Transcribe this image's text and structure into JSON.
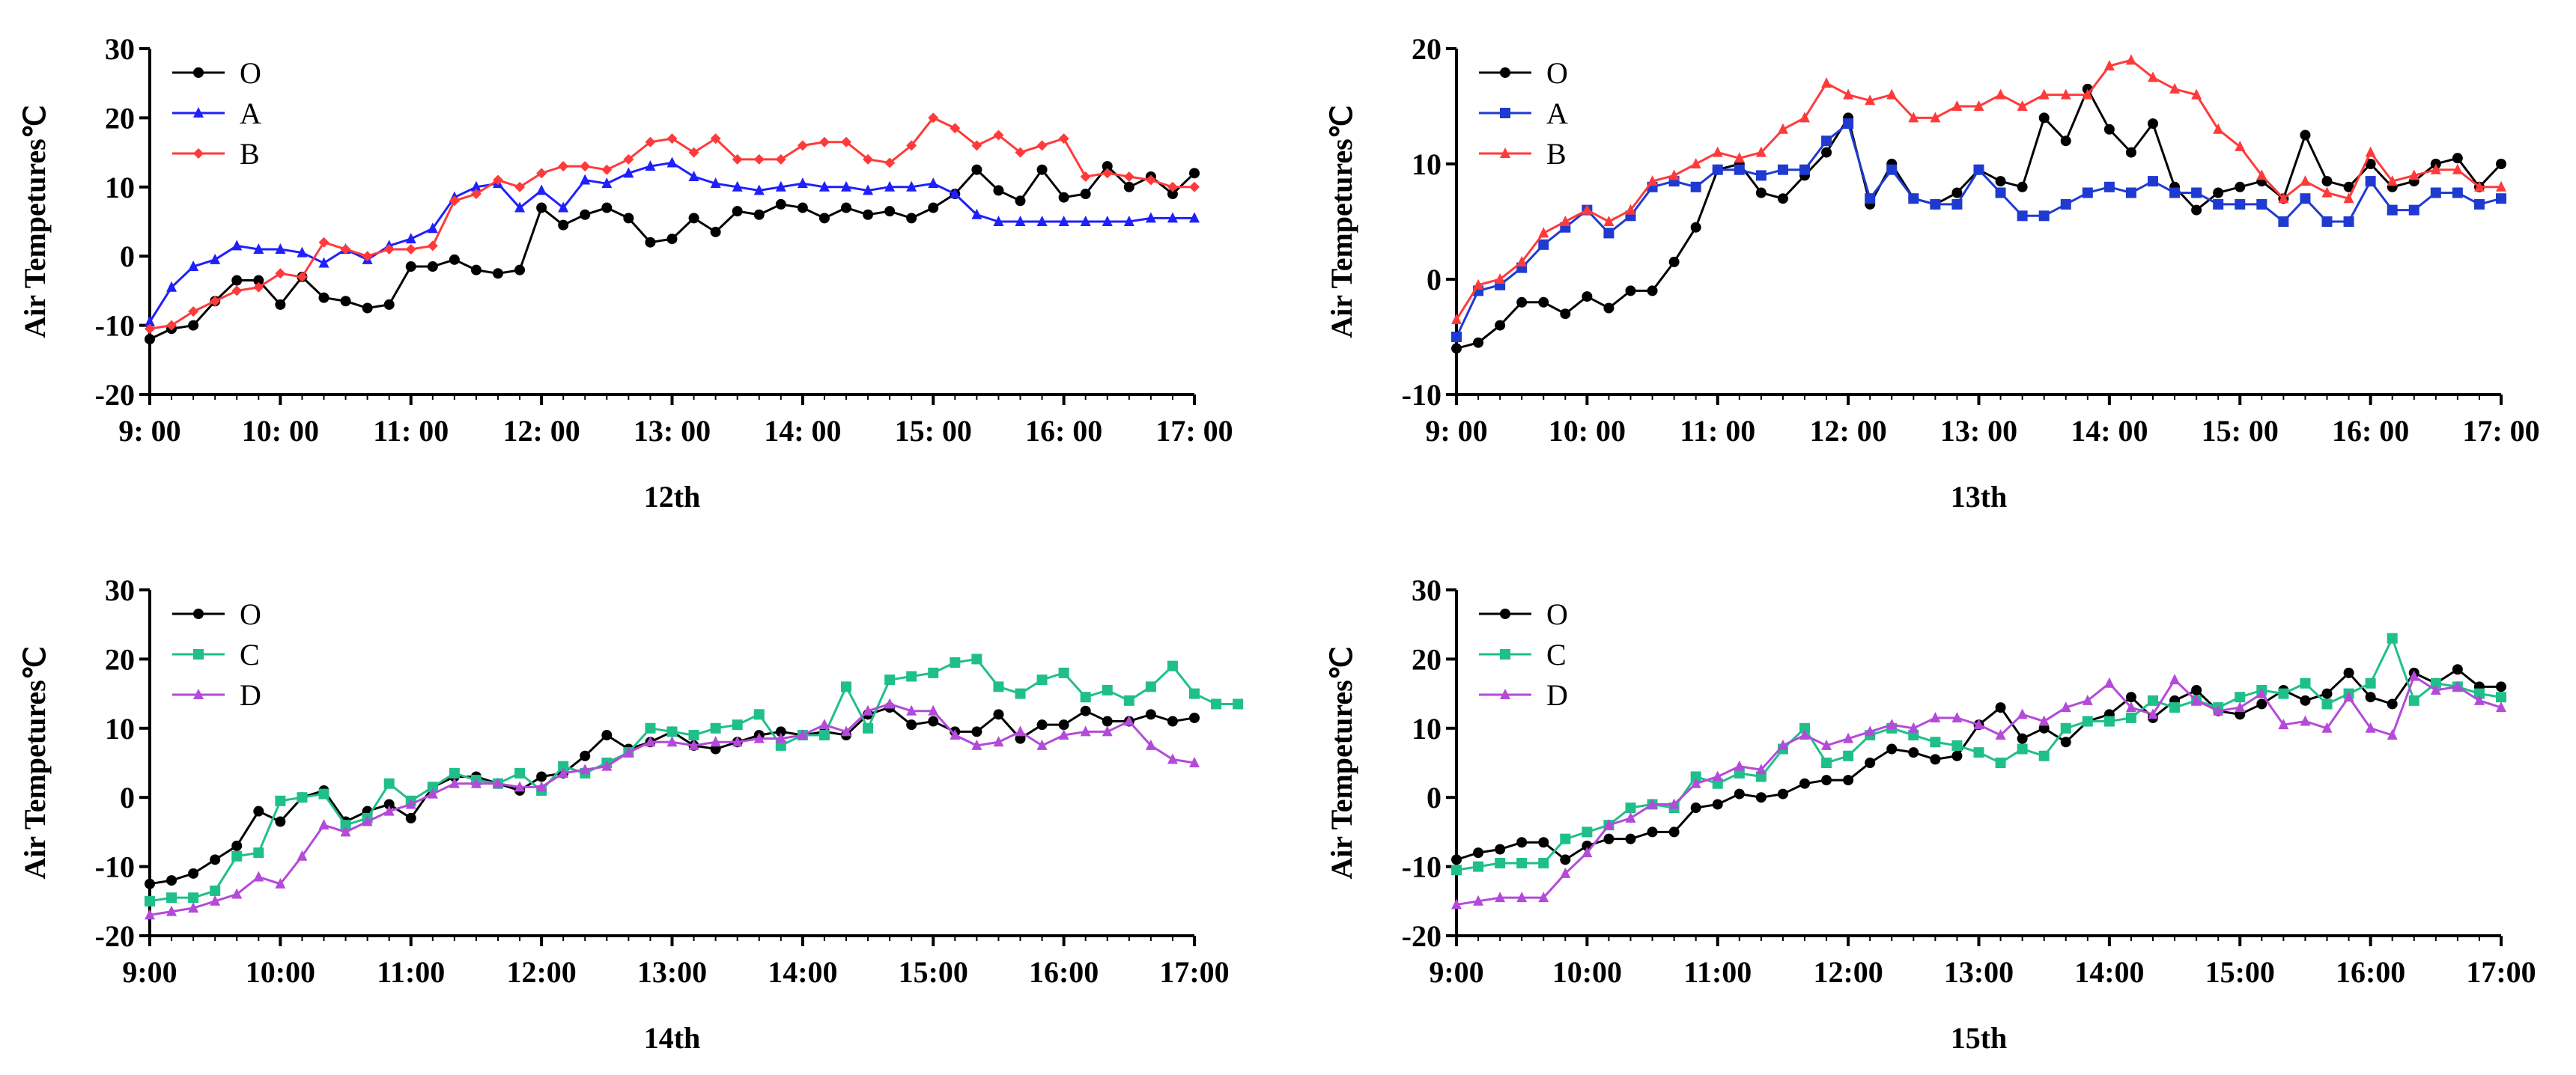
{
  "chart_data": [
    {
      "type": "line",
      "title": "12th",
      "ylabel": "Air Tempetures℃",
      "xlabel": "12th",
      "ylim": [
        -20,
        30
      ],
      "yticks": [
        -20,
        -10,
        0,
        10,
        20,
        30
      ],
      "xlim": [
        0,
        48
      ],
      "xticks": [
        0,
        6,
        12,
        18,
        24,
        30,
        36,
        42,
        48
      ],
      "xtick_labels": [
        "9: 00",
        "10: 00",
        "11: 00",
        "12: 00",
        "13: 00",
        "14: 00",
        "15: 00",
        "16: 00",
        "17: 00"
      ],
      "legend": "top-left",
      "series": [
        {
          "name": "O",
          "color": "#000000",
          "marker": "circle",
          "values": [
            -12,
            -10.5,
            -10,
            -6.5,
            -3.5,
            -3.5,
            -7,
            -3,
            -6,
            -6.5,
            -7.5,
            -7,
            -1.5,
            -1.5,
            -0.5,
            -2,
            -2.5,
            -2,
            7,
            4.5,
            6,
            7,
            5.5,
            2,
            2.5,
            5.5,
            3.5,
            6.5,
            6,
            7.5,
            7,
            5.5,
            7,
            6,
            6.5,
            5.5,
            7,
            9,
            12.5,
            9.5,
            8,
            12.5,
            8.5,
            9,
            13,
            10,
            11.5,
            9,
            12
          ]
        },
        {
          "name": "A",
          "color": "#1f1fff",
          "marker": "triangle",
          "values": [
            -9.5,
            -4.5,
            -1.5,
            -0.5,
            1.5,
            1,
            1,
            0.5,
            -1,
            1,
            -0.5,
            1.5,
            2.5,
            4,
            8.5,
            10,
            10.5,
            7,
            9.5,
            7,
            11,
            10.5,
            12,
            13,
            13.5,
            11.5,
            10.5,
            10,
            9.5,
            10,
            10.5,
            10,
            10,
            9.5,
            10,
            10,
            10.5,
            9,
            6,
            5,
            5,
            5,
            5,
            5,
            5,
            5,
            5.5,
            5.5,
            5.5
          ]
        },
        {
          "name": "B",
          "color": "#ff3a3a",
          "marker": "diamond",
          "values": [
            -10.5,
            -10,
            -8,
            -6.5,
            -5,
            -4.5,
            -2.5,
            -3,
            2,
            1,
            0,
            1,
            1,
            1.5,
            8,
            9,
            11,
            10,
            12,
            13,
            13,
            12.5,
            14,
            16.5,
            17,
            15,
            17,
            14,
            14,
            14,
            16,
            16.5,
            16.5,
            14,
            13.5,
            16,
            20,
            18.5,
            16,
            17.5,
            15,
            16,
            17,
            11.5,
            12,
            11.5,
            11,
            10,
            10
          ]
        }
      ]
    },
    {
      "type": "line",
      "title": "13th",
      "ylabel": "Air Tempetures℃",
      "xlabel": "13th",
      "ylim": [
        -10,
        20
      ],
      "yticks": [
        -10,
        0,
        10,
        20
      ],
      "xlim": [
        0,
        48
      ],
      "xticks": [
        0,
        6,
        12,
        18,
        24,
        30,
        36,
        42,
        48
      ],
      "xtick_labels": [
        "9: 00",
        "10: 00",
        "11: 00",
        "12: 00",
        "13: 00",
        "14: 00",
        "15: 00",
        "16: 00",
        "17: 00"
      ],
      "legend": "top-left",
      "series": [
        {
          "name": "O",
          "color": "#000000",
          "marker": "circle",
          "values": [
            -6,
            -5.5,
            -4,
            -2,
            -2,
            -3,
            -1.5,
            -2.5,
            -1,
            -1,
            1.5,
            4.5,
            9.5,
            10,
            7.5,
            7,
            9,
            11,
            14,
            6.5,
            10,
            7,
            6.5,
            7.5,
            9.5,
            8.5,
            8,
            14,
            12,
            16.5,
            13,
            11,
            13.5,
            8,
            6,
            7.5,
            8,
            8.5,
            7,
            12.5,
            8.5,
            8,
            10,
            8,
            8.5,
            10,
            10.5,
            8,
            10
          ]
        },
        {
          "name": "A",
          "color": "#1f3ad1",
          "marker": "square",
          "values": [
            -5,
            -1,
            -0.5,
            1,
            3,
            4.5,
            6,
            4,
            5.5,
            8,
            8.5,
            8,
            9.5,
            9.5,
            9,
            9.5,
            9.5,
            12,
            13.5,
            7,
            9.5,
            7,
            6.5,
            6.5,
            9.5,
            7.5,
            5.5,
            5.5,
            6.5,
            7.5,
            8,
            7.5,
            8.5,
            7.5,
            7.5,
            6.5,
            6.5,
            6.5,
            5,
            7,
            5,
            5,
            8.5,
            6,
            6,
            7.5,
            7.5,
            6.5,
            7
          ]
        },
        {
          "name": "B",
          "color": "#ff3a3a",
          "marker": "triangle",
          "values": [
            -3.5,
            -0.5,
            0,
            1.5,
            4,
            5,
            6,
            5,
            6,
            8.5,
            9,
            10,
            11,
            10.5,
            11,
            13,
            14,
            17,
            16,
            15.5,
            16,
            14,
            14,
            15,
            15,
            16,
            15,
            16,
            16,
            16,
            18.5,
            19,
            17.5,
            16.5,
            16,
            13,
            11.5,
            9,
            7,
            8.5,
            7.5,
            7,
            11,
            8.5,
            9,
            9.5,
            9.5,
            8,
            8
          ]
        }
      ]
    },
    {
      "type": "line",
      "title": "14th",
      "ylabel": "Air Tempetures℃",
      "xlabel": "14th",
      "ylim": [
        -20,
        30
      ],
      "yticks": [
        -20,
        -10,
        0,
        10,
        20,
        30
      ],
      "xlim": [
        0,
        48
      ],
      "xticks": [
        0,
        6,
        12,
        18,
        24,
        30,
        36,
        42,
        48
      ],
      "xtick_labels": [
        "9:00",
        "10:00",
        "11:00",
        "12:00",
        "13:00",
        "14:00",
        "15:00",
        "16:00",
        "17:00"
      ],
      "legend": "top-left",
      "series": [
        {
          "name": "O",
          "color": "#000000",
          "marker": "circle",
          "values": [
            -12.5,
            -12,
            -11,
            -9,
            -7,
            -2,
            -3.5,
            0,
            1,
            -3.5,
            -2,
            -1,
            -3,
            1.5,
            3,
            3,
            2,
            1,
            3,
            3.5,
            6,
            9,
            7,
            8,
            9.5,
            7.5,
            7,
            8,
            9,
            9.5,
            9,
            9.5,
            9,
            12,
            13,
            10.5,
            11,
            9.5,
            9.5,
            12,
            8.5,
            10.5,
            10.5,
            12.5,
            11,
            11,
            12,
            11,
            11.5
          ]
        },
        {
          "name": "C",
          "color": "#1fbf8a",
          "marker": "square",
          "values": [
            -15,
            -14.5,
            -14.5,
            -13.5,
            -8.5,
            -8,
            -0.5,
            0,
            0.5,
            -4,
            -3,
            2,
            -0.5,
            1.5,
            3.5,
            2.5,
            2,
            3.5,
            1,
            4.5,
            3.5,
            5,
            6.5,
            10,
            9.5,
            9,
            10,
            10.5,
            12,
            7.5,
            9,
            9,
            16,
            10,
            17,
            17.5,
            18,
            19.5,
            20,
            16,
            15,
            17,
            18,
            14.5,
            15.5,
            14,
            16,
            19,
            15,
            13.5,
            13.5
          ]
        },
        {
          "name": "D",
          "color": "#b44ad9",
          "marker": "triangle",
          "values": [
            -17,
            -16.5,
            -16,
            -15,
            -14,
            -11.5,
            -12.5,
            -8.5,
            -4,
            -5,
            -3.5,
            -2,
            -1,
            0.5,
            2,
            2,
            2,
            1.5,
            1.5,
            3.5,
            4,
            4.5,
            6.5,
            8,
            8,
            7.5,
            8,
            8,
            8.5,
            8.5,
            9,
            10.5,
            9.5,
            12.5,
            13.5,
            12.5,
            12.5,
            9,
            7.5,
            8,
            9.5,
            7.5,
            9,
            9.5,
            9.5,
            11,
            7.5,
            5.5,
            5
          ]
        }
      ]
    },
    {
      "type": "line",
      "title": "15th",
      "ylabel": "Air Tempetures℃",
      "xlabel": "15th",
      "ylim": [
        -20,
        30
      ],
      "yticks": [
        -20,
        -10,
        0,
        10,
        20,
        30
      ],
      "xlim": [
        0,
        48
      ],
      "xticks": [
        0,
        6,
        12,
        18,
        24,
        30,
        36,
        42,
        48
      ],
      "xtick_labels": [
        "9:00",
        "10:00",
        "11:00",
        "12:00",
        "13:00",
        "14:00",
        "15:00",
        "16:00",
        "17:00"
      ],
      "legend": "top-left",
      "series": [
        {
          "name": "O",
          "color": "#000000",
          "marker": "circle",
          "values": [
            -9,
            -8,
            -7.5,
            -6.5,
            -6.5,
            -9,
            -7,
            -6,
            -6,
            -5,
            -5,
            -1.5,
            -1,
            0.5,
            0,
            0.5,
            2,
            2.5,
            2.5,
            5,
            7,
            6.5,
            5.5,
            6,
            10.5,
            13,
            8.5,
            10,
            8,
            11,
            12,
            14.5,
            11.5,
            14,
            15.5,
            12.5,
            12,
            13.5,
            15.5,
            14,
            15,
            18,
            14.5,
            13.5,
            18,
            16.5,
            18.5,
            16,
            16
          ]
        },
        {
          "name": "C",
          "color": "#1fbf8a",
          "marker": "square",
          "values": [
            -10.5,
            -10,
            -9.5,
            -9.5,
            -9.5,
            -6,
            -5,
            -4,
            -1.5,
            -1,
            -1.5,
            3,
            2,
            3.5,
            3,
            7,
            10,
            5,
            6,
            9,
            10,
            9,
            8,
            7.5,
            6.5,
            5,
            7,
            6,
            10,
            11,
            11,
            11.5,
            14,
            13,
            14,
            13,
            14.5,
            15.5,
            15,
            16.5,
            13.5,
            15,
            16.5,
            23,
            14,
            16.5,
            16,
            15,
            14.5
          ]
        },
        {
          "name": "D",
          "color": "#b44ad9",
          "marker": "triangle",
          "values": [
            -15.5,
            -15,
            -14.5,
            -14.5,
            -14.5,
            -11,
            -8,
            -4,
            -3,
            -1,
            -1,
            2,
            3,
            4.5,
            4,
            7.5,
            9,
            7.5,
            8.5,
            9.5,
            10.5,
            10,
            11.5,
            11.5,
            10.5,
            9,
            12,
            11,
            13,
            14,
            16.5,
            13,
            12,
            17,
            14,
            12.5,
            13,
            15,
            10.5,
            11,
            10,
            14.5,
            10,
            9,
            17.5,
            15.5,
            16,
            14,
            13
          ]
        }
      ]
    }
  ]
}
